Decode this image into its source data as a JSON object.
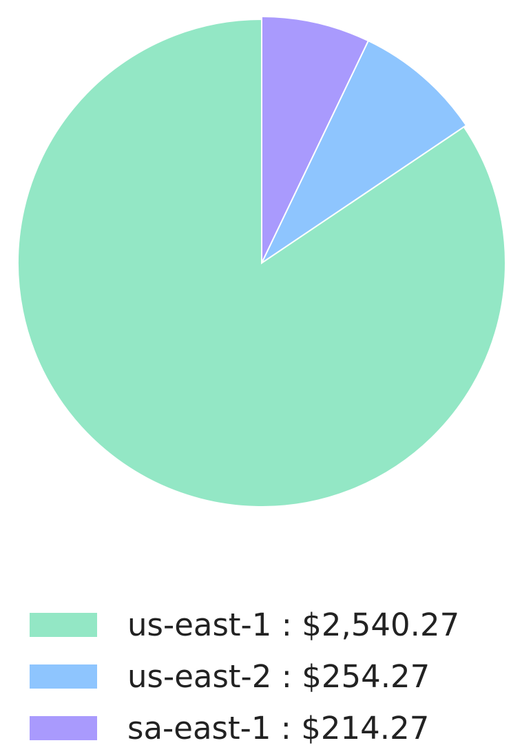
{
  "chart_data": {
    "type": "pie",
    "start_angle": "top, clockwise",
    "slices": [
      {
        "label": "us-east-1",
        "value": 2540.27,
        "display": "us-east-1 : $2,540.27",
        "color": "#93e7c5"
      },
      {
        "label": "us-east-2",
        "value": 254.27,
        "display": "us-east-2 : $254.27",
        "color": "#8ec5fe"
      },
      {
        "label": "sa-east-1",
        "value": 214.27,
        "display": "sa-east-1 : $214.27",
        "color": "#a99afd"
      }
    ],
    "legend_position": "bottom-left"
  }
}
